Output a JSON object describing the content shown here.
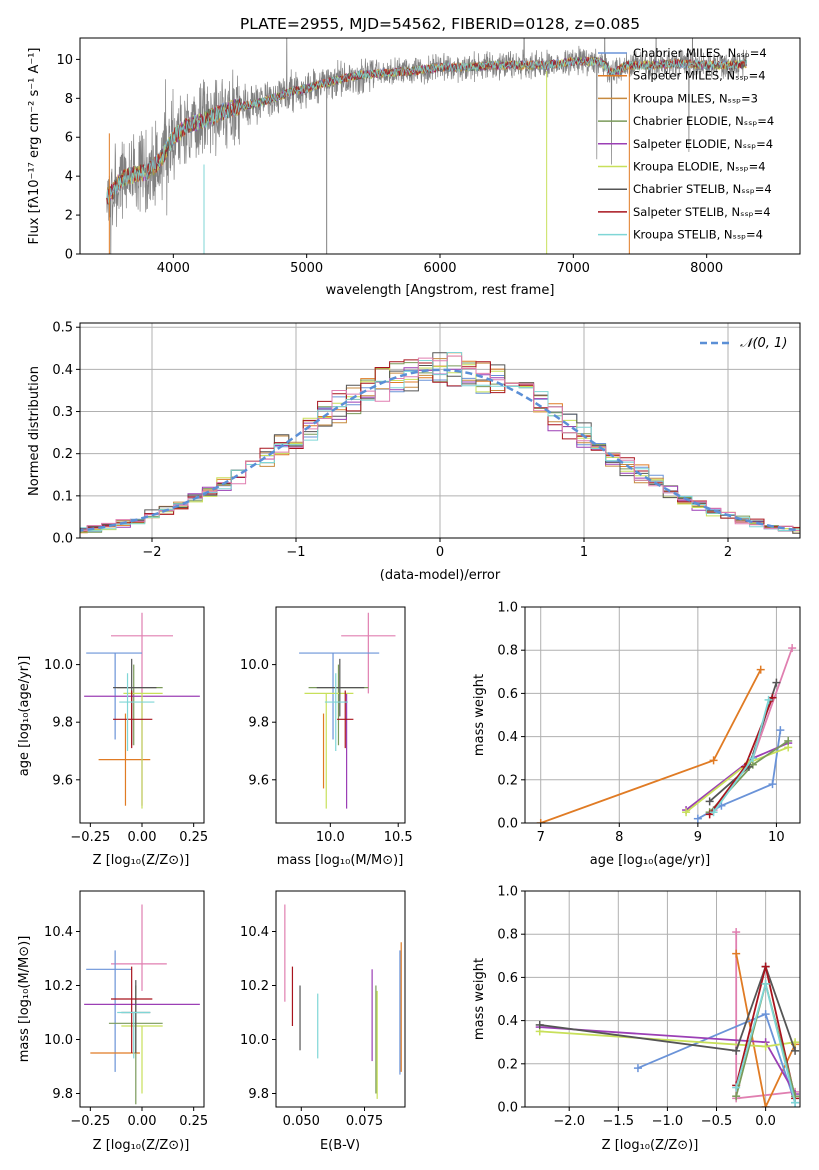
{
  "chart_data": [
    {
      "id": "spectrum",
      "type": "line",
      "title": "PLATE=2955, MJD=54562, FIBERID=0128, z=0.085",
      "xlabel": "wavelength [Angstrom, rest frame]",
      "ylabel": "Flux [fλ10⁻¹⁷ erg cm⁻² s⁻¹ A⁻¹]",
      "xlim": [
        3300,
        8700
      ],
      "ylim": [
        0,
        11.1
      ],
      "xticks": [
        4000,
        5000,
        6000,
        7000,
        8000
      ],
      "yticks": [
        0,
        2,
        4,
        6,
        8,
        10
      ],
      "grid": false,
      "legend_position": "top-right",
      "continuum": {
        "x": [
          3520,
          3600,
          3700,
          3800,
          3900,
          4000,
          4100,
          4200,
          4300,
          4400,
          4500,
          4600,
          4700,
          4800,
          4900,
          5000,
          5200,
          5400,
          5600,
          5800,
          6000,
          6200,
          6400,
          6600,
          6800,
          7000,
          7200,
          7300,
          7400,
          7600,
          7800,
          8000,
          8200,
          8300
        ],
        "y": [
          3.0,
          3.8,
          4.1,
          4.2,
          4.8,
          6.0,
          6.6,
          6.8,
          7.1,
          7.4,
          7.6,
          7.7,
          7.9,
          8.1,
          8.4,
          8.5,
          8.9,
          9.2,
          9.3,
          9.4,
          9.6,
          9.6,
          9.7,
          9.7,
          9.7,
          9.9,
          9.9,
          9.3,
          9.7,
          9.7,
          9.8,
          9.7,
          9.7,
          9.8
        ]
      },
      "series": [
        {
          "name": "Chabrier MILES, N_SSP=4",
          "color": "#6a93d8"
        },
        {
          "name": "Salpeter MILES, N_SSP=4",
          "color": "#e07b24"
        },
        {
          "name": "Kroupa MILES, N_SSP=3",
          "color": "#c78a3f"
        },
        {
          "name": "Chabrier ELODIE, N_SSP=4",
          "color": "#7a9a5a"
        },
        {
          "name": "Salpeter ELODIE, N_SSP=4",
          "color": "#9b3fb5"
        },
        {
          "name": "Kroupa ELODIE, N_SSP=4",
          "color": "#c8e05a"
        },
        {
          "name": "Chabrier STELIB, N_SSP=4",
          "color": "#555555"
        },
        {
          "name": "Salpeter STELIB, N_SSP=4",
          "color": "#a8141e"
        },
        {
          "name": "Kroupa STELIB, N_SSP=4",
          "color": "#7fd6d6"
        }
      ],
      "data_color": "#808080"
    },
    {
      "id": "residuals",
      "type": "line",
      "xlabel": "(data-model)/error",
      "ylabel": "Normed distribution",
      "xlim": [
        -2.5,
        2.5
      ],
      "ylim": [
        0,
        0.51
      ],
      "xticks": [
        -2,
        -1,
        0,
        1,
        2
      ],
      "yticks": [
        0.0,
        0.1,
        0.2,
        0.3,
        0.4,
        0.5
      ],
      "grid": true,
      "legend_position": "top-right",
      "legend": "𝒩(0, 1)",
      "gaussian": {
        "mu": 0,
        "sigma": 1,
        "color": "#5b8fd6"
      },
      "bin_width": 0.1,
      "histogram_colors": [
        "#6a93d8",
        "#e07b24",
        "#c78a3f",
        "#7a9a5a",
        "#9b3fb5",
        "#c8e05a",
        "#555555",
        "#a8141e",
        "#7fd6d6",
        "#e07fb0"
      ]
    },
    {
      "id": "age-vs-Z",
      "type": "scatter",
      "xlabel": "Z [log₁₀(Z/Z⊙)]",
      "ylabel": "age  [log₁₀(age/yr)]",
      "xlim": [
        -0.3,
        0.3
      ],
      "ylim": [
        9.45,
        10.2
      ],
      "xticks": [
        -0.25,
        0.0,
        0.25
      ],
      "xticklabels": [
        "−0.25",
        "0.00",
        "0.25"
      ],
      "yticks": [
        9.6,
        9.8,
        10.0
      ],
      "errorbars": [
        {
          "x": 0.0,
          "xerr": [
            0.15,
            0.15
          ],
          "y": 10.1,
          "yerr": [
            0.2,
            0.08
          ],
          "color": "#e07fb0"
        },
        {
          "x": -0.13,
          "xerr": [
            0.14,
            0.13
          ],
          "y": 10.04,
          "yerr": [
            0.3,
            0.0
          ],
          "color": "#6a93d8"
        },
        {
          "x": -0.08,
          "xerr": [
            0.13,
            0.12
          ],
          "y": 9.67,
          "yerr": [
            0.16,
            0.16
          ],
          "color": "#e07b24"
        },
        {
          "x": -0.04,
          "xerr": [
            0.08,
            0.14
          ],
          "y": 9.92,
          "yerr": [
            0.2,
            0.08
          ],
          "color": "#7a9a5a"
        },
        {
          "x": 0.0,
          "xerr": [
            0.28,
            0.28
          ],
          "y": 9.89,
          "yerr": [
            0.38,
            0.0
          ],
          "color": "#9b3fb5"
        },
        {
          "x": 0.0,
          "xerr": [
            0.09,
            0.1
          ],
          "y": 9.9,
          "yerr": [
            0.4,
            0.0
          ],
          "color": "#c8e05a"
        },
        {
          "x": -0.05,
          "xerr": [
            0.09,
            0.12
          ],
          "y": 9.92,
          "yerr": [
            0.2,
            0.1
          ],
          "color": "#555555"
        },
        {
          "x": -0.05,
          "xerr": [
            0.09,
            0.1
          ],
          "y": 9.81,
          "yerr": [
            0.1,
            0.1
          ],
          "color": "#a8141e"
        },
        {
          "x": -0.07,
          "xerr": [
            0.04,
            0.13
          ],
          "y": 9.87,
          "yerr": [
            0.17,
            0.1
          ],
          "color": "#7fd6d6"
        }
      ]
    },
    {
      "id": "age-vs-mass",
      "type": "scatter",
      "xlabel": "mass [log₁₀(M/M⊙)]",
      "xlim": [
        9.6,
        10.55
      ],
      "ylim": [
        9.45,
        10.2
      ],
      "xticks": [
        10.0,
        10.5
      ],
      "yticks": [
        9.6,
        9.8,
        10.0
      ],
      "errorbars": [
        {
          "x": 10.28,
          "xerr": [
            0.2,
            0.2
          ],
          "y": 10.1,
          "yerr": [
            0.2,
            0.08
          ],
          "color": "#e07fb0"
        },
        {
          "x": 10.02,
          "xerr": [
            0.25,
            0.34
          ],
          "y": 10.04,
          "yerr": [
            0.3,
            0.0
          ],
          "color": "#6a93d8"
        },
        {
          "x": 9.95,
          "xerr": [
            0.0,
            0.0
          ],
          "y": 9.67,
          "yerr": [
            0.1,
            0.16
          ],
          "color": "#e07b24"
        },
        {
          "x": 10.06,
          "xerr": [
            0.22,
            0.22
          ],
          "y": 9.92,
          "yerr": [
            0.2,
            0.08
          ],
          "color": "#7a9a5a"
        },
        {
          "x": 10.12,
          "xerr": [
            0.0,
            0.0
          ],
          "y": 9.7,
          "yerr": [
            0.2,
            0.2
          ],
          "color": "#9b3fb5"
        },
        {
          "x": 9.97,
          "xerr": [
            0.16,
            0.2
          ],
          "y": 9.9,
          "yerr": [
            0.4,
            0.0
          ],
          "color": "#c8e05a"
        },
        {
          "x": 10.07,
          "xerr": [
            0.17,
            0.18
          ],
          "y": 9.92,
          "yerr": [
            0.1,
            0.1
          ],
          "color": "#555555"
        },
        {
          "x": 10.11,
          "xerr": [
            0.06,
            0.06
          ],
          "y": 9.81,
          "yerr": [
            0.1,
            0.1
          ],
          "color": "#a8141e"
        },
        {
          "x": 10.04,
          "xerr": [
            0.08,
            0.09
          ],
          "y": 9.87,
          "yerr": [
            0.17,
            0.1
          ],
          "color": "#7fd6d6"
        }
      ]
    },
    {
      "id": "weight-vs-age",
      "type": "line",
      "xlabel": "age  [log₁₀(age/yr)]",
      "ylabel": "mass weight",
      "xlim": [
        6.8,
        10.3
      ],
      "ylim": [
        0,
        1.0
      ],
      "xticks": [
        7,
        8,
        9,
        10
      ],
      "yticks": [
        0.0,
        0.2,
        0.4,
        0.6,
        0.8,
        1.0
      ],
      "grid": true,
      "series": [
        {
          "color": "#e07b24",
          "x": [
            7.0,
            9.2,
            9.8
          ],
          "y": [
            0.0,
            0.29,
            0.71
          ]
        },
        {
          "color": "#e07fb0",
          "x": [
            9.2,
            9.7,
            10.2
          ],
          "y": [
            0.06,
            0.3,
            0.81
          ]
        },
        {
          "color": "#6a93d8",
          "x": [
            9.0,
            9.3,
            9.95,
            10.05
          ],
          "y": [
            0.02,
            0.08,
            0.18,
            0.43
          ]
        },
        {
          "color": "#9b3fb5",
          "x": [
            8.85,
            9.7,
            10.15
          ],
          "y": [
            0.06,
            0.3,
            0.37
          ]
        },
        {
          "color": "#c8e05a",
          "x": [
            8.85,
            9.65,
            10.15
          ],
          "y": [
            0.05,
            0.28,
            0.35
          ]
        },
        {
          "color": "#7a9a5a",
          "x": [
            9.15,
            9.7,
            10.15
          ],
          "y": [
            0.05,
            0.27,
            0.38
          ]
        },
        {
          "color": "#555555",
          "x": [
            9.15,
            9.65,
            10.0
          ],
          "y": [
            0.1,
            0.26,
            0.65
          ]
        },
        {
          "color": "#a8141e",
          "x": [
            9.15,
            9.6,
            9.95
          ],
          "y": [
            0.04,
            0.26,
            0.58
          ]
        },
        {
          "color": "#7fd6d6",
          "x": [
            9.2,
            9.7,
            9.9
          ],
          "y": [
            0.05,
            0.3,
            0.57
          ]
        }
      ]
    },
    {
      "id": "mass-vs-Z",
      "type": "scatter",
      "xlabel": "Z [log₁₀(Z/Z⊙)]",
      "ylabel": "mass [log₁₀(M/M⊙)]",
      "xlim": [
        -0.3,
        0.3
      ],
      "ylim": [
        9.75,
        10.55
      ],
      "xticks": [
        -0.25,
        0.0,
        0.25
      ],
      "xticklabels": [
        "−0.25",
        "0.00",
        "0.25"
      ],
      "yticks": [
        9.8,
        10.0,
        10.2,
        10.4
      ],
      "errorbars": [
        {
          "x": 0.0,
          "xerr": [
            0.15,
            0.12
          ],
          "y": 10.28,
          "yerr": [
            0.1,
            0.22
          ],
          "color": "#e07fb0"
        },
        {
          "x": -0.13,
          "xerr": [
            0.14,
            0.08
          ],
          "y": 10.26,
          "yerr": [
            0.38,
            0.07
          ],
          "color": "#6a93d8"
        },
        {
          "x": -0.11,
          "xerr": [
            0.14,
            0.1
          ],
          "y": 9.95,
          "yerr": [
            0.0,
            0.0
          ],
          "color": "#e07b24"
        },
        {
          "x": -0.03,
          "xerr": [
            0.13,
            0.13
          ],
          "y": 10.06,
          "yerr": [
            0.3,
            0.14
          ],
          "color": "#7a9a5a"
        },
        {
          "x": 0.0,
          "xerr": [
            0.28,
            0.28
          ],
          "y": 10.13,
          "yerr": [
            0.0,
            0.0
          ],
          "color": "#9b3fb5"
        },
        {
          "x": 0.0,
          "xerr": [
            0.1,
            0.1
          ],
          "y": 10.05,
          "yerr": [
            0.25,
            0.0
          ],
          "color": "#c8e05a"
        },
        {
          "x": -0.03,
          "xerr": [
            0.07,
            0.07
          ],
          "y": 10.1,
          "yerr": [
            0.15,
            0.12
          ],
          "color": "#555555"
        },
        {
          "x": -0.05,
          "xerr": [
            0.1,
            0.1
          ],
          "y": 10.15,
          "yerr": [
            0.2,
            0.12
          ],
          "color": "#a8141e"
        },
        {
          "x": -0.04,
          "xerr": [
            0.08,
            0.08
          ],
          "y": 10.1,
          "yerr": [
            0.17,
            0.0
          ],
          "color": "#7fd6d6"
        }
      ]
    },
    {
      "id": "mass-vs-EBV",
      "type": "scatter",
      "xlabel": "E(B-V)",
      "xlim": [
        0.04,
        0.091
      ],
      "ylim": [
        9.75,
        10.55
      ],
      "xticks": [
        0.05,
        0.075
      ],
      "xticklabels": [
        "0.050",
        "0.075"
      ],
      "yticks": [
        9.8,
        10.0,
        10.2,
        10.4
      ],
      "errorbars": [
        {
          "x": 0.0435,
          "xerr": [
            0,
            0
          ],
          "y": 10.32,
          "yerr": [
            0.18,
            0.18
          ],
          "color": "#e07fb0"
        },
        {
          "x": 0.0465,
          "xerr": [
            0,
            0
          ],
          "y": 10.16,
          "yerr": [
            0.11,
            0.11
          ],
          "color": "#a8141e"
        },
        {
          "x": 0.0495,
          "xerr": [
            0,
            0
          ],
          "y": 10.07,
          "yerr": [
            0.11,
            0.13
          ],
          "color": "#555555"
        },
        {
          "x": 0.0565,
          "xerr": [
            0,
            0
          ],
          "y": 10.05,
          "yerr": [
            0.12,
            0.12
          ],
          "color": "#7fd6d6"
        },
        {
          "x": 0.078,
          "xerr": [
            0,
            0
          ],
          "y": 10.09,
          "yerr": [
            0.17,
            0.17
          ],
          "color": "#9b3fb5"
        },
        {
          "x": 0.0795,
          "xerr": [
            0,
            0
          ],
          "y": 10.0,
          "yerr": [
            0.2,
            0.2
          ],
          "color": "#7a9a5a"
        },
        {
          "x": 0.08,
          "xerr": [
            0,
            0
          ],
          "y": 9.98,
          "yerr": [
            0.2,
            0.2
          ],
          "color": "#c8e05a"
        },
        {
          "x": 0.089,
          "xerr": [
            0,
            0
          ],
          "y": 10.07,
          "yerr": [
            0.2,
            0.26
          ],
          "color": "#6a93d8"
        },
        {
          "x": 0.0895,
          "xerr": [
            0,
            0
          ],
          "y": 10.12,
          "yerr": [
            0.24,
            0.24
          ],
          "color": "#e07b24"
        }
      ]
    },
    {
      "id": "weight-vs-Z",
      "type": "line",
      "xlabel": "Z [log₁₀(Z/Z⊙)]",
      "ylabel": "mass weight",
      "xlim": [
        -2.45,
        0.35
      ],
      "ylim": [
        0,
        1.0
      ],
      "xticks": [
        -2.0,
        -1.5,
        -1.0,
        -0.5,
        0.0
      ],
      "xticklabels": [
        "−2.0",
        "−1.5",
        "−1.0",
        "−0.5",
        "0.0"
      ],
      "yticks": [
        0.0,
        0.2,
        0.4,
        0.6,
        0.8,
        1.0
      ],
      "grid": true,
      "series": [
        {
          "color": "#e07fb0",
          "x": [
            -0.3,
            -0.3,
            0.3
          ],
          "y": [
            0.81,
            0.04,
            0.07
          ]
        },
        {
          "color": "#e07b24",
          "x": [
            -0.3,
            0.0,
            0.3
          ],
          "y": [
            0.71,
            0.0,
            0.29
          ]
        },
        {
          "color": "#6a93d8",
          "x": [
            -1.3,
            0.0,
            0.3
          ],
          "y": [
            0.18,
            0.43,
            0.02
          ]
        },
        {
          "color": "#9b3fb5",
          "x": [
            -2.3,
            0.0,
            0.3
          ],
          "y": [
            0.37,
            0.3,
            0.06
          ]
        },
        {
          "color": "#c8e05a",
          "x": [
            -2.3,
            0.0,
            0.3
          ],
          "y": [
            0.35,
            0.28,
            0.3
          ]
        },
        {
          "color": "#555555",
          "x": [
            -2.3,
            -0.3,
            0.0,
            0.3
          ],
          "y": [
            0.38,
            0.26,
            0.65,
            0.26
          ]
        },
        {
          "color": "#a8141e",
          "x": [
            -0.3,
            0.0,
            0.3
          ],
          "y": [
            0.1,
            0.65,
            0.04
          ]
        },
        {
          "color": "#7a9a5a",
          "x": [
            -0.3,
            0.0,
            0.3
          ],
          "y": [
            0.05,
            0.57,
            0.05
          ]
        },
        {
          "color": "#7fd6d6",
          "x": [
            -0.3,
            0.0,
            0.3
          ],
          "y": [
            0.09,
            0.57,
            0.02
          ]
        }
      ]
    }
  ]
}
